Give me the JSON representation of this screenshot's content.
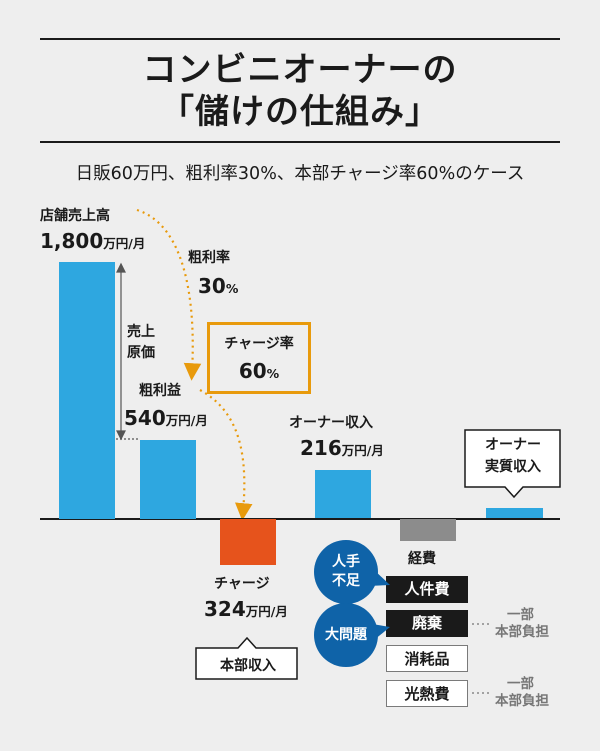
{
  "title": {
    "line1": "コンビニオーナーの",
    "line2": "「儲けの仕組み」"
  },
  "subtitle": "日販60万円、粗利率30%、本部チャージ率60%のケース",
  "colors": {
    "bar_blue": "#2ea7e0",
    "charge_orange": "#e6531c",
    "expense_gray": "#8c8c8c",
    "accent_amber": "#e89a0c",
    "bubble_blue": "#0f63a8"
  },
  "chart_data": {
    "type": "bar",
    "title": "コンビニオーナーの「儲けの仕組み」",
    "unit": "万円/月",
    "categories": [
      "店舗売上高",
      "粗利益",
      "チャージ",
      "オーナー収入",
      "経費",
      "オーナー実質収入"
    ],
    "values": [
      1800,
      540,
      -324,
      216,
      null,
      null
    ],
    "labels": {
      "sales": {
        "name": "店舗売上高",
        "value": "1,800",
        "unit": "万円/月"
      },
      "gross": {
        "name": "粗利益",
        "value": "540",
        "unit": "万円/月"
      },
      "charge": {
        "name": "チャージ",
        "value": "324",
        "unit": "万円/月"
      },
      "owner": {
        "name": "オーナー収入",
        "value": "216",
        "unit": "万円/月"
      },
      "expenses": {
        "name": "経費"
      },
      "net": {
        "name_line1": "オーナー",
        "name_line2": "実質収入"
      }
    },
    "annotations": {
      "cost_line1": "売上",
      "cost_line2": "原価",
      "gross_rate_label": "粗利率",
      "gross_rate_value": "30",
      "gross_rate_unit": "%",
      "charge_rate_label": "チャージ率",
      "charge_rate_value": "60",
      "charge_rate_unit": "%",
      "hq_income": "本部収入"
    }
  },
  "expenses": {
    "items": [
      {
        "label": "人件費",
        "style": "dark"
      },
      {
        "label": "廃棄",
        "style": "dark"
      },
      {
        "label": "消耗品",
        "style": "light"
      },
      {
        "label": "光熱費",
        "style": "light"
      }
    ],
    "bubbles": [
      {
        "line1": "人手",
        "line2": "不足"
      },
      {
        "line1": "大問題",
        "line2": ""
      }
    ],
    "notes": [
      {
        "line1": "一部",
        "line2": "本部負担"
      },
      {
        "line1": "一部",
        "line2": "本部負担"
      }
    ]
  }
}
